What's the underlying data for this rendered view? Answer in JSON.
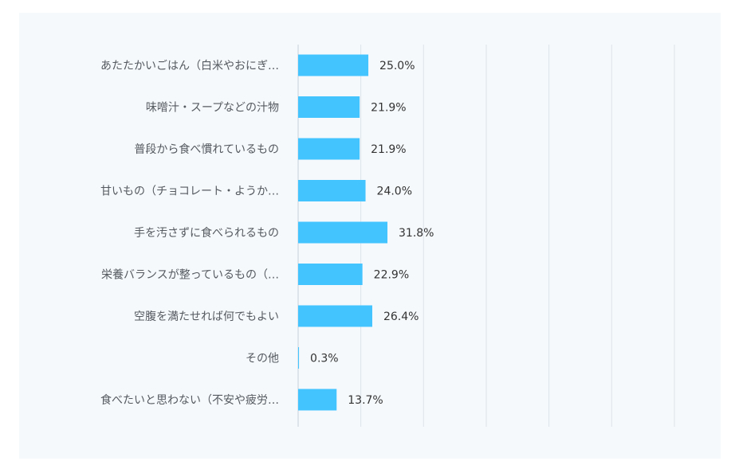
{
  "chart_data": {
    "type": "bar",
    "orientation": "horizontal",
    "categories": [
      "あたたかいごはん（白米やおにぎ…",
      "味噌汁・スープなどの汁物",
      "普段から食べ慣れているもの",
      "甘いもの（チョコレート・ようか…",
      "手を汚さずに食べられるもの",
      "栄養バランスが整っているもの（…",
      "空腹を満たせれば何でもよい",
      "その他",
      "食べたいと思わない（不安や疲労…"
    ],
    "values": [
      25.0,
      21.9,
      21.9,
      24.0,
      31.8,
      22.9,
      26.4,
      0.3,
      13.7
    ],
    "value_labels": [
      "25.0%",
      "21.9%",
      "21.9%",
      "24.0%",
      "31.8%",
      "22.9%",
      "26.4%",
      "0.3%",
      "13.7%"
    ],
    "xlim": [
      0,
      134
    ],
    "grid": true,
    "legend": "none",
    "bar_color": "#44c4ff"
  }
}
